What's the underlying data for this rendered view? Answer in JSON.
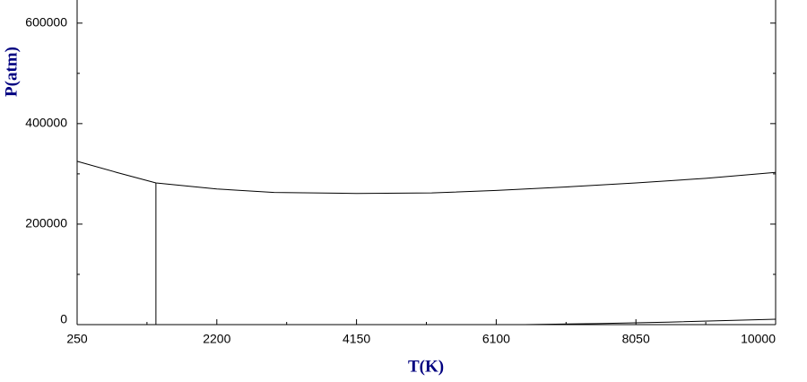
{
  "chart_data": {
    "type": "line",
    "xlabel": "T(K)",
    "ylabel": "P(atm)",
    "xlim": [
      250,
      10000
    ],
    "ylim": [
      0,
      646000
    ],
    "xticks": [
      250,
      2200,
      4150,
      6100,
      8050,
      10000
    ],
    "yticks": [
      0,
      200000,
      400000,
      600000
    ],
    "xminorticks": [
      1225,
      3175,
      5125,
      7075,
      9025
    ],
    "yminorticks": [
      100000,
      300000,
      500000
    ],
    "series": [
      {
        "color": "#000000",
        "x": [
          250,
          800,
          1350,
          2200,
          3000,
          4150,
          5200,
          6100,
          7075,
          8050,
          9025,
          10000
        ],
        "values": [
          325000,
          303000,
          282000,
          270000,
          263000,
          261000,
          262000,
          267000,
          274000,
          282000,
          291000,
          303000
        ]
      },
      {
        "color": "#000000",
        "x": [
          1350,
          1350
        ],
        "values": [
          282000,
          0
        ]
      },
      {
        "color": "#000000",
        "x": [
          6500,
          7500,
          8500,
          10000
        ],
        "values": [
          0,
          2000,
          5000,
          10700
        ]
      }
    ]
  }
}
